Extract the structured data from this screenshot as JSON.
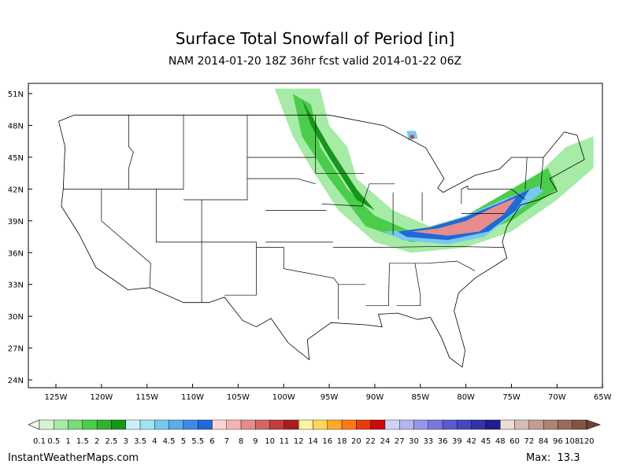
{
  "header": {
    "title": "Surface Total Snowfall of Period [in]",
    "subtitle": "NAM 2014-01-20 18Z 36hr fcst valid 2014-01-22 06Z"
  },
  "map": {
    "lat_labels": [
      "51N",
      "48N",
      "45N",
      "42N",
      "39N",
      "36N",
      "33N",
      "30N",
      "27N",
      "24N"
    ],
    "lon_labels": [
      "125W",
      "120W",
      "115W",
      "110W",
      "105W",
      "100W",
      "95W",
      "90W",
      "85W",
      "80W",
      "75W",
      "70W",
      "65W"
    ]
  },
  "colorbar": {
    "labels": [
      "0.1",
      "0.5",
      "1",
      "1.5",
      "2",
      "2.5",
      "3",
      "3.5",
      "4",
      "4.5",
      "5",
      "5.5",
      "6",
      "7",
      "8",
      "9",
      "10",
      "11",
      "12",
      "14",
      "16",
      "18",
      "20",
      "22",
      "24",
      "27",
      "30",
      "33",
      "36",
      "39",
      "42",
      "45",
      "48",
      "60",
      "72",
      "84",
      "96",
      "108",
      "120"
    ],
    "colors": [
      "#d4f5d4",
      "#a6eba6",
      "#78dc78",
      "#4ccc4c",
      "#2db42d",
      "#16961a",
      "#c8f2f8",
      "#a0e4f6",
      "#78c8f0",
      "#5aacec",
      "#3c8ce6",
      "#1e6ad6",
      "#fcd4d4",
      "#f5b4b4",
      "#e68c8c",
      "#d66464",
      "#c43c3c",
      "#a81e1e",
      "#fff3a0",
      "#ffd75a",
      "#ffaa28",
      "#ff7814",
      "#e63c0a",
      "#c80a0a",
      "#d2d2f5",
      "#b4b4f0",
      "#9696eb",
      "#7878e1",
      "#5a5ad2",
      "#4646be",
      "#3232aa",
      "#1e1e8c",
      "#eadcd6",
      "#d6bcb2",
      "#c29e92",
      "#ae8274",
      "#9a6a5a",
      "#825444"
    ]
  },
  "footer": {
    "site": "InstantWeatherMaps.com",
    "max": "Max:  13.3"
  }
}
